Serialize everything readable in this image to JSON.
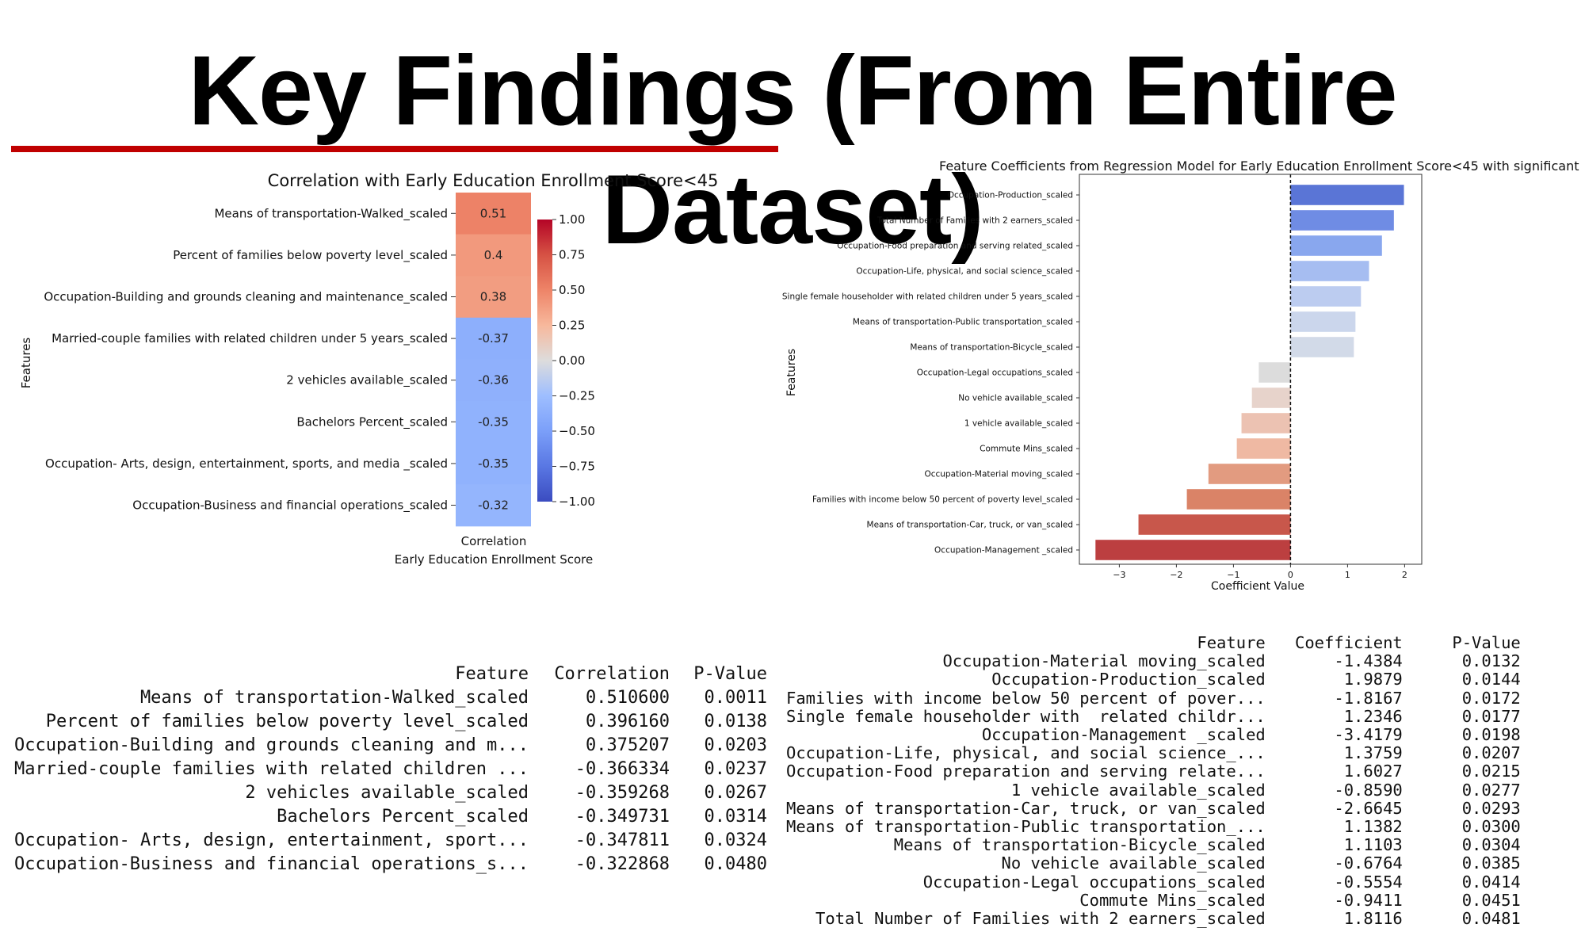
{
  "title": "Key Findings (From Entire Dataset)",
  "accent_color": "#c00000",
  "chart_data": [
    {
      "type": "heatmap",
      "title": "Correlation with Early Education Enrollment Score<45",
      "xlabel": "Correlation\nEarly Education Enrollment Score",
      "xlabel_lines": [
        "Correlation",
        "Early Education Enrollment Score"
      ],
      "ylabel": "Features",
      "categories": [
        "Means of transportation-Walked_scaled",
        "Percent of families below poverty level_scaled",
        "Occupation-Building and grounds cleaning and maintenance_scaled",
        "Married-couple families with related children under 5 years_scaled",
        "2 vehicles available_scaled",
        "Bachelors Percent_scaled",
        "Occupation- Arts, design, entertainment, sports, and media _scaled",
        "Occupation-Business and financial operations_scaled"
      ],
      "values": [
        0.51,
        0.4,
        0.38,
        -0.37,
        -0.36,
        -0.35,
        -0.35,
        -0.32
      ],
      "value_labels": [
        "0.51",
        "0.4",
        "0.38",
        "-0.37",
        "-0.36",
        "-0.35",
        "-0.35",
        "-0.32"
      ],
      "colorbar": {
        "range": [
          -1,
          1
        ],
        "ticks": [
          1,
          0.75,
          0.5,
          0.25,
          0,
          -0.25,
          -0.5,
          -0.75,
          -1
        ],
        "tick_labels": [
          "1.00",
          "0.75",
          "0.50",
          "0.25",
          "0.00",
          "−0.25",
          "−0.50",
          "−0.75",
          "−1.00"
        ],
        "colormap": "coolwarm"
      }
    },
    {
      "type": "bar",
      "orientation": "horizontal",
      "title": "Feature Coefficients from Regression Model for Early Education Enrollment Score<45 with significant ı",
      "xlabel": "Coefficient Value",
      "ylabel": "Features",
      "categories": [
        "Occupation-Production_scaled",
        "Total Number of Families with 2 earners_scaled",
        "Occupation-Food preparation and serving related_scaled",
        "Occupation-Life, physical, and social science_scaled",
        "Single female householder with  related children under 5 years_scaled",
        "Means of transportation-Public transportation_scaled",
        "Means of transportation-Bicycle_scaled",
        "Occupation-Legal occupations_scaled",
        "No vehicle available_scaled",
        "1 vehicle available_scaled",
        "Commute Mins_scaled",
        "Occupation-Material moving_scaled",
        "Families with income below 50 percent of poverty level_scaled",
        "Means of transportation-Car, truck, or van_scaled",
        "Occupation-Management _scaled"
      ],
      "values": [
        1.9879,
        1.8116,
        1.6027,
        1.3759,
        1.2346,
        1.1382,
        1.1103,
        -0.5554,
        -0.6764,
        -0.859,
        -0.9411,
        -1.4384,
        -1.8167,
        -2.6645,
        -3.4179
      ],
      "xlim": [
        -3.7,
        2.3
      ],
      "xticks": [
        -3,
        -2,
        -1,
        0,
        1,
        2
      ],
      "xtick_labels": [
        "−3",
        "−2",
        "−1",
        "0",
        "1",
        "2"
      ],
      "colors": [
        "#5a75d6",
        "#6f8ce4",
        "#89a7ee",
        "#a6bdf1",
        "#bcccf0",
        "#cbd6ec",
        "#d2dae8",
        "#dcdcdc",
        "#e7d3cb",
        "#ecc2b2",
        "#efb9a3",
        "#e29b80",
        "#da8367",
        "#c8574b",
        "#bc3f40"
      ]
    },
    {
      "type": "table",
      "columns": [
        "Feature",
        "Correlation",
        "P-Value"
      ],
      "rows": [
        [
          "Means of transportation-Walked_scaled",
          "0.510600",
          "0.0011"
        ],
        [
          "Percent of families below poverty level_scaled",
          "0.396160",
          "0.0138"
        ],
        [
          "Occupation-Building and grounds cleaning and m...",
          "0.375207",
          "0.0203"
        ],
        [
          "Married-couple families with related children ...",
          "-0.366334",
          "0.0237"
        ],
        [
          "2 vehicles available_scaled",
          "-0.359268",
          "0.0267"
        ],
        [
          "Bachelors Percent_scaled",
          "-0.349731",
          "0.0314"
        ],
        [
          "Occupation- Arts, design, entertainment, sport...",
          "-0.347811",
          "0.0324"
        ],
        [
          "Occupation-Business and financial operations_s...",
          "-0.322868",
          "0.0480"
        ]
      ]
    },
    {
      "type": "table",
      "columns": [
        "Feature",
        "Coefficient",
        "P-Value"
      ],
      "rows": [
        [
          "Occupation-Material moving_scaled",
          "-1.4384",
          "0.0132"
        ],
        [
          "Occupation-Production_scaled",
          "1.9879",
          "0.0144"
        ],
        [
          "Families with income below 50 percent of pover...",
          "-1.8167",
          "0.0172"
        ],
        [
          "Single female householder with  related childr...",
          "1.2346",
          "0.0177"
        ],
        [
          "Occupation-Management _scaled",
          "-3.4179",
          "0.0198"
        ],
        [
          "Occupation-Life, physical, and social science_...",
          "1.3759",
          "0.0207"
        ],
        [
          "Occupation-Food preparation and serving relate...",
          "1.6027",
          "0.0215"
        ],
        [
          "1 vehicle available_scaled",
          "-0.8590",
          "0.0277"
        ],
        [
          "Means of transportation-Car, truck, or van_scaled",
          "-2.6645",
          "0.0293"
        ],
        [
          "Means of transportation-Public transportation_...",
          "1.1382",
          "0.0300"
        ],
        [
          "Means of transportation-Bicycle_scaled",
          "1.1103",
          "0.0304"
        ],
        [
          "No vehicle available_scaled",
          "-0.6764",
          "0.0385"
        ],
        [
          "Occupation-Legal occupations_scaled",
          "-0.5554",
          "0.0414"
        ],
        [
          "Commute Mins_scaled",
          "-0.9411",
          "0.0451"
        ],
        [
          "Total Number of Families with 2 earners_scaled",
          "1.8116",
          "0.0481"
        ]
      ]
    }
  ]
}
